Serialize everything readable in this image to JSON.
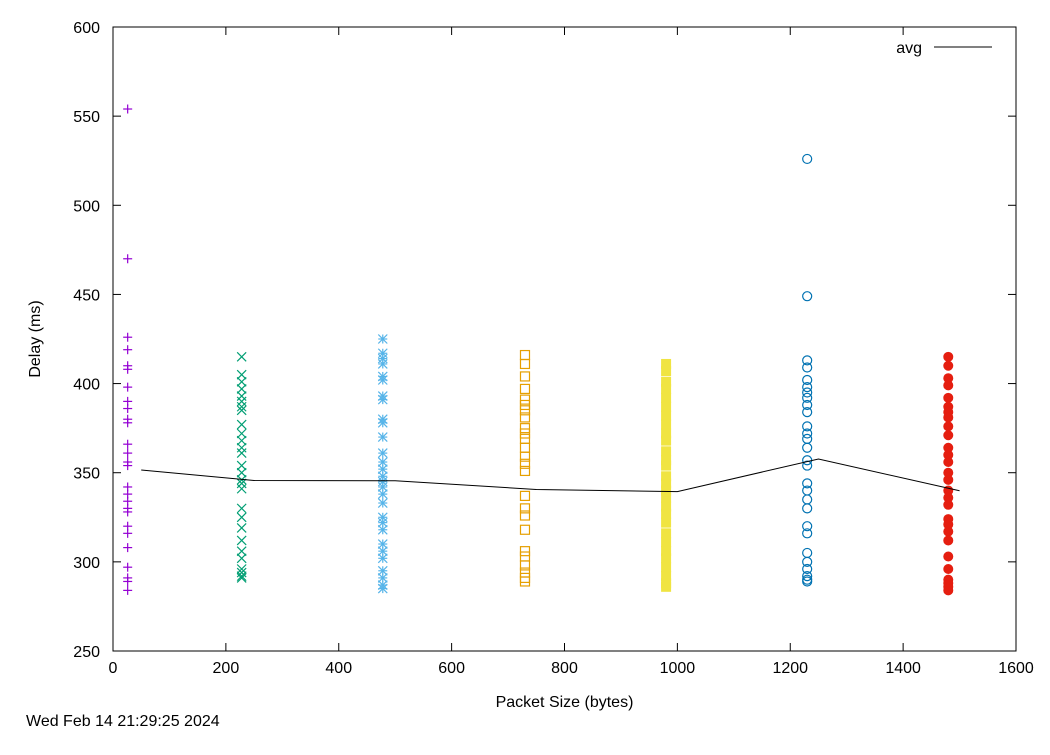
{
  "timestamp": "Wed Feb 14 21:29:25 2024",
  "chart_data": {
    "type": "scatter",
    "title": "",
    "xlabel": "Packet Size (bytes)",
    "ylabel": "Delay (ms)",
    "xlim": [
      0,
      1600
    ],
    "ylim": [
      250,
      600
    ],
    "xticks": [
      0,
      200,
      400,
      600,
      800,
      1000,
      1200,
      1400,
      1600
    ],
    "yticks": [
      250,
      300,
      350,
      400,
      450,
      500,
      550,
      600
    ],
    "grid": false,
    "legend_position": "top-right",
    "series": [
      {
        "marker": "plus",
        "color": "#9400d3",
        "x": 26,
        "values": [
          554,
          470,
          426,
          419,
          410,
          408,
          398,
          390,
          386,
          380,
          378,
          366,
          361,
          356,
          354,
          342,
          338,
          334,
          330,
          328,
          320,
          316,
          308,
          297,
          291,
          289,
          284
        ]
      },
      {
        "marker": "cross",
        "color": "#009e73",
        "x": 228,
        "values": [
          415,
          405,
          401,
          397,
          393,
          390,
          387,
          385,
          377,
          372,
          368,
          364,
          361,
          354,
          350,
          346,
          344,
          341,
          330,
          325,
          319,
          312,
          306,
          302,
          296,
          294,
          292,
          291
        ]
      },
      {
        "marker": "asterisk",
        "color": "#56b4e9",
        "x": 478,
        "values": [
          425,
          417,
          414,
          411,
          404,
          402,
          393,
          391,
          380,
          378,
          370,
          361,
          356,
          352,
          348,
          345,
          342,
          338,
          333,
          325,
          322,
          318,
          310,
          306,
          302,
          295,
          291,
          287,
          285
        ]
      },
      {
        "marker": "open-square",
        "color": "#e69f00",
        "x": 730,
        "values": [
          416,
          411,
          404,
          397,
          391,
          388,
          385,
          381,
          375,
          372,
          369,
          364,
          359,
          355,
          351,
          337,
          330,
          326,
          318,
          306,
          303,
          298,
          294,
          291,
          289
        ]
      },
      {
        "marker": "filled-square",
        "color": "#f0e442",
        "x": 980,
        "values": [
          411,
          407,
          401,
          397,
          392,
          387,
          382,
          377,
          372,
          368,
          362,
          357,
          354,
          348,
          344,
          340,
          336,
          331,
          327,
          322,
          316,
          311,
          306,
          302,
          297,
          292,
          288,
          286
        ]
      },
      {
        "marker": "open-circle",
        "color": "#0072b2",
        "x": 1230,
        "values": [
          526,
          449,
          413,
          409,
          402,
          398,
          395,
          392,
          388,
          384,
          376,
          372,
          369,
          364,
          357,
          354,
          344,
          340,
          335,
          330,
          320,
          316,
          305,
          300,
          296,
          292,
          290,
          289
        ]
      },
      {
        "marker": "filled-circle",
        "color": "#e51e10",
        "x": 1480,
        "values": [
          415,
          410,
          403,
          399,
          392,
          387,
          384,
          381,
          376,
          371,
          364,
          360,
          356,
          350,
          346,
          340,
          336,
          332,
          324,
          321,
          317,
          312,
          303,
          296,
          290,
          288,
          286,
          284
        ]
      },
      {
        "name": "avg",
        "marker": "line",
        "color": "#000000",
        "x": [
          50,
          250,
          500,
          750,
          1000,
          1250,
          1500
        ],
        "values": [
          351.5,
          345.6,
          345.5,
          340.6,
          339.4,
          357.7,
          339.9
        ]
      }
    ]
  }
}
